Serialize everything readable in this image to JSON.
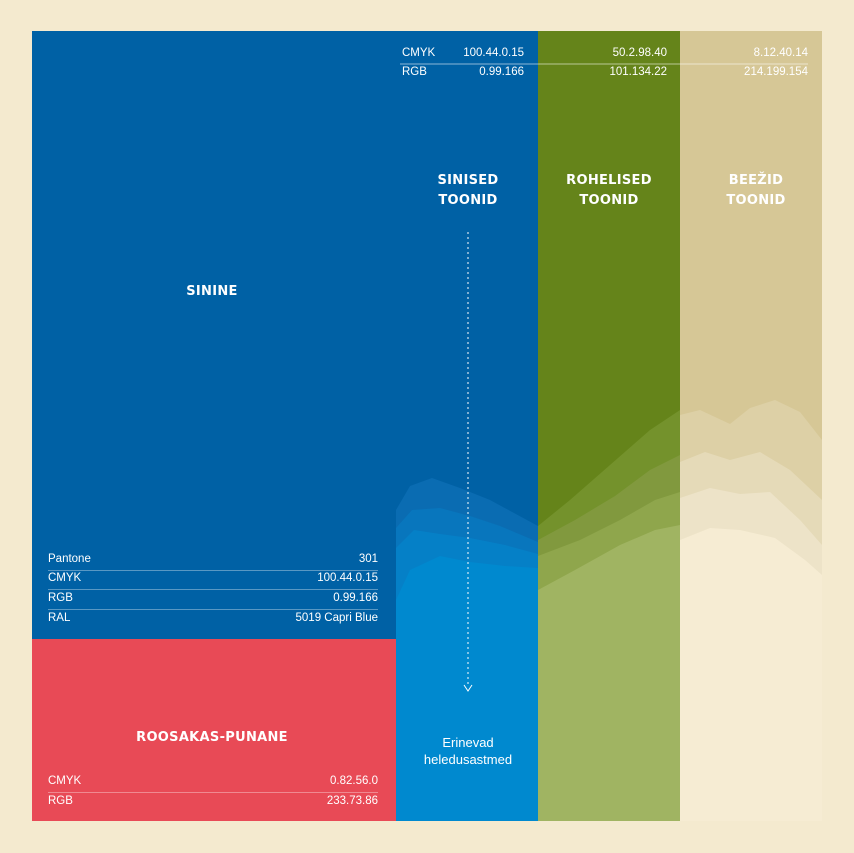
{
  "colors": {
    "background": "#f4eacf",
    "sinine": "#0061a5",
    "roosakas_punane": "#e84a56",
    "roheline": "#65841a",
    "beez": "#d6c796",
    "light_blue": "#0089cf",
    "light_green": "#a0b462",
    "light_beige": "#f6ecd3"
  },
  "sinine": {
    "title": "SININE",
    "specs": [
      {
        "label": "Pantone",
        "value": "301"
      },
      {
        "label": "CMYK",
        "value": "100.44.0.15"
      },
      {
        "label": "RGB",
        "value": "0.99.166"
      },
      {
        "label": "RAL",
        "value": "5019 Capri Blue"
      }
    ]
  },
  "roosakas": {
    "title": "ROOSAKAS-PUNANE",
    "specs": [
      {
        "label": "CMYK",
        "value": "0.82.56.0"
      },
      {
        "label": "RGB",
        "value": "233.73.86"
      }
    ]
  },
  "top_specs": {
    "labels": [
      "CMYK",
      "RGB"
    ],
    "blue": [
      "100.44.0.15",
      "0.99.166"
    ],
    "green": [
      "50.2.98.40",
      "101.134.22"
    ],
    "beige": [
      "8.12.40.14",
      "214.199.154"
    ]
  },
  "columns": {
    "blue_title_1": "SINISED",
    "blue_title_2": "TOONID",
    "green_title_1": "ROHELISED",
    "green_title_2": "TOONID",
    "beige_title_1": "BEEŽID",
    "beige_title_2": "TOONID"
  },
  "gradient_note": {
    "line1": "Erinevad",
    "line2": "heledusastmed"
  }
}
